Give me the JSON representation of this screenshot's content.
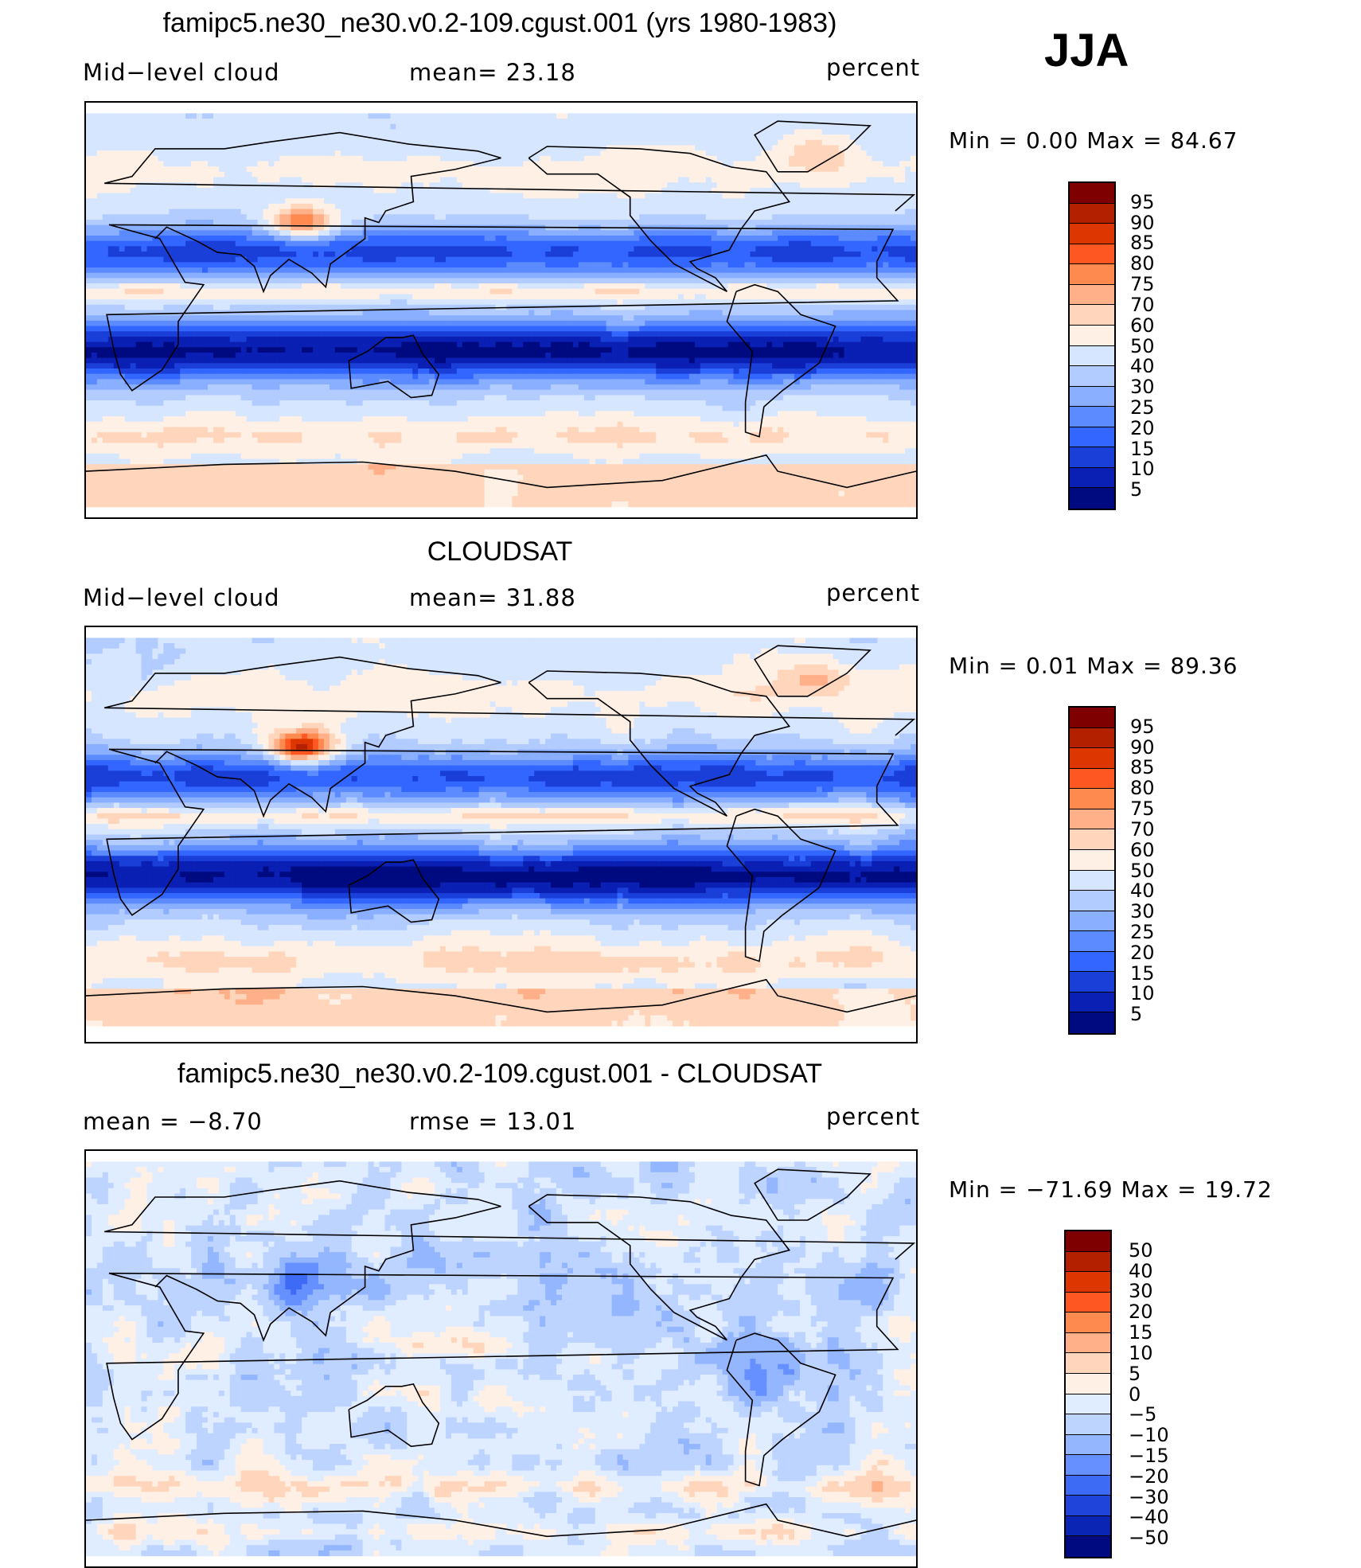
{
  "season": "JJA",
  "chart_data": [
    {
      "type": "heatmap",
      "title": "famipc5.ne30_ne30.v0.2-109.cgust.001 (yrs 1980-1983)",
      "left_label": "Mid−level cloud",
      "center_label": "mean=   23.18",
      "units": "percent",
      "mean": 23.18,
      "min_max_text": "Min =     0.00  Max  =    84.67",
      "min": 0.0,
      "max": 84.67,
      "colorbar_levels": [
        "95",
        "90",
        "85",
        "80",
        "75",
        "70",
        "60",
        "50",
        "40",
        "30",
        "25",
        "20",
        "15",
        "10",
        "5"
      ],
      "colors": [
        "#7f0000",
        "#b22000",
        "#dd3600",
        "#ff5722",
        "#ff8a50",
        "#ffb088",
        "#ffd6bc",
        "#fff0e6",
        "#d6e6ff",
        "#b3ccff",
        "#8aafff",
        "#5c8aff",
        "#3366ff",
        "#1a3fd9",
        "#0a1fb3",
        "#000a80"
      ],
      "field_style": "model"
    },
    {
      "type": "heatmap",
      "title": "CLOUDSAT",
      "left_label": "Mid−level cloud",
      "center_label": "mean=   31.88",
      "units": "percent",
      "mean": 31.88,
      "min_max_text": "Min =     0.01  Max  =    89.36",
      "min": 0.01,
      "max": 89.36,
      "colorbar_levels": [
        "95",
        "90",
        "85",
        "80",
        "75",
        "70",
        "60",
        "50",
        "40",
        "30",
        "25",
        "20",
        "15",
        "10",
        "5"
      ],
      "colors": [
        "#7f0000",
        "#b22000",
        "#dd3600",
        "#ff5722",
        "#ff8a50",
        "#ffb088",
        "#ffd6bc",
        "#fff0e6",
        "#d6e6ff",
        "#b3ccff",
        "#8aafff",
        "#5c8aff",
        "#3366ff",
        "#1a3fd9",
        "#0a1fb3",
        "#000a80"
      ],
      "field_style": "obs"
    },
    {
      "type": "heatmap",
      "title": "famipc5.ne30_ne30.v0.2-109.cgust.001 - CLOUDSAT",
      "left_label": "mean  =    −8.70",
      "center_label": "rmse  =    13.01",
      "units": "percent",
      "mean": -8.7,
      "rmse": 13.01,
      "min_max_text": "Min  = −71.69  Max  =    19.72",
      "min": -71.69,
      "max": 19.72,
      "colorbar_levels": [
        "50",
        "40",
        "30",
        "20",
        "15",
        "10",
        "5",
        "0",
        "−5",
        "−10",
        "−15",
        "−20",
        "−30",
        "−40",
        "−50"
      ],
      "colors": [
        "#7f0000",
        "#b22000",
        "#dd3600",
        "#ff5722",
        "#ff8a50",
        "#ffb088",
        "#ffd6bc",
        "#fff0e6",
        "#e0ecff",
        "#bcd4ff",
        "#93b6ff",
        "#6690ff",
        "#3d6bf5",
        "#1f44d9",
        "#0a24b3",
        "#000a80"
      ],
      "field_style": "diff"
    }
  ]
}
